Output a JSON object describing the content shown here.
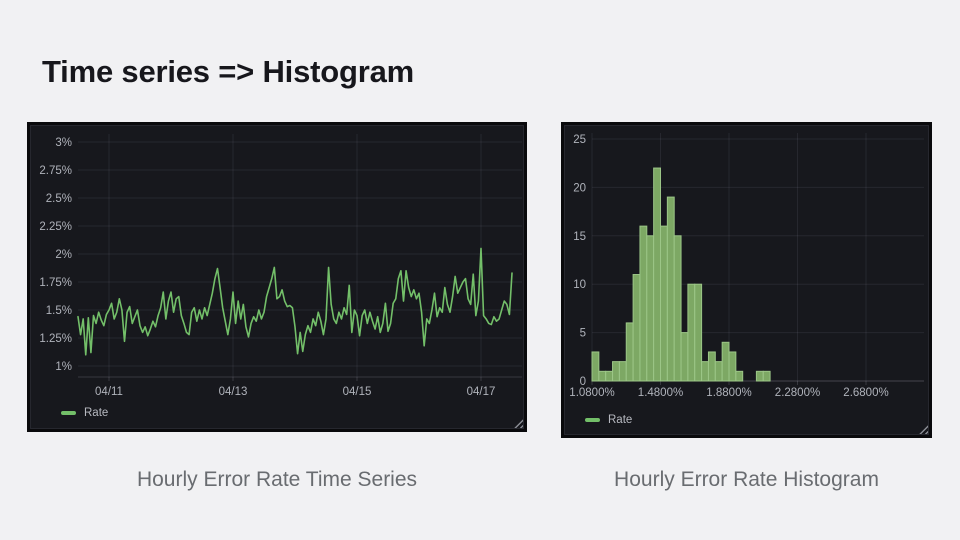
{
  "slide": {
    "title": "Time series => Histogram",
    "captions": {
      "left": "Hourly Error Rate Time Series",
      "right": "Hourly Error Rate Histogram"
    }
  },
  "colors": {
    "slide_background": "#f1f1f3",
    "panel_background": "#17181d",
    "panel_frame": "#0a0a0c",
    "title_text": "#17171c",
    "caption_text": "#696c70",
    "axis_text": "#b0b3bb",
    "legend_text": "#b7b9c0",
    "grid_line": "rgba(204,204,220,0.09)",
    "axis_line": "rgba(204,204,220,0.18)",
    "series_green": "#73bf69",
    "bar_fill": "#7da864",
    "bar_stroke": "#9cc687"
  },
  "chart_data": [
    {
      "type": "line",
      "name": "Hourly Error Rate Time Series",
      "legend": {
        "label": "Rate"
      },
      "color": "#73bf69",
      "y_ticks": [
        "3%",
        "2.75%",
        "2.5%",
        "2.25%",
        "2%",
        "1.75%",
        "1.5%",
        "1.25%",
        "1%"
      ],
      "ylim": [
        1.0,
        3.0
      ],
      "x_unit": "hour",
      "x_ticks": [
        {
          "label": "04/11",
          "index": 12
        },
        {
          "label": "04/13",
          "index": 60
        },
        {
          "label": "04/15",
          "index": 108
        },
        {
          "label": "04/17",
          "index": 156
        }
      ],
      "grid": true,
      "legend_position": "bottom-left",
      "values": [
        1.44,
        1.28,
        1.42,
        1.1,
        1.43,
        1.12,
        1.45,
        1.38,
        1.48,
        1.41,
        1.36,
        1.46,
        1.5,
        1.56,
        1.42,
        1.48,
        1.6,
        1.5,
        1.22,
        1.48,
        1.53,
        1.38,
        1.44,
        1.5,
        1.36,
        1.3,
        1.35,
        1.27,
        1.33,
        1.4,
        1.35,
        1.45,
        1.52,
        1.66,
        1.42,
        1.58,
        1.66,
        1.48,
        1.6,
        1.62,
        1.45,
        1.38,
        1.3,
        1.28,
        1.48,
        1.52,
        1.4,
        1.5,
        1.42,
        1.52,
        1.45,
        1.55,
        1.65,
        1.78,
        1.87,
        1.7,
        1.52,
        1.4,
        1.28,
        1.42,
        1.66,
        1.38,
        1.58,
        1.42,
        1.55,
        1.35,
        1.26,
        1.38,
        1.44,
        1.4,
        1.5,
        1.42,
        1.48,
        1.62,
        1.7,
        1.78,
        1.88,
        1.6,
        1.62,
        1.68,
        1.58,
        1.53,
        1.54,
        1.52,
        1.35,
        1.11,
        1.3,
        1.13,
        1.28,
        1.36,
        1.3,
        1.42,
        1.36,
        1.48,
        1.4,
        1.28,
        1.42,
        1.88,
        1.55,
        1.42,
        1.38,
        1.48,
        1.42,
        1.52,
        1.46,
        1.72,
        1.3,
        1.5,
        1.45,
        1.27,
        1.45,
        1.5,
        1.38,
        1.48,
        1.4,
        1.33,
        1.44,
        1.3,
        1.38,
        1.56,
        1.31,
        1.38,
        1.56,
        1.6,
        1.78,
        1.85,
        1.58,
        1.85,
        1.7,
        1.62,
        1.68,
        1.6,
        1.65,
        1.48,
        1.18,
        1.42,
        1.38,
        1.5,
        1.65,
        1.44,
        1.52,
        1.48,
        1.7,
        1.55,
        1.48,
        1.62,
        1.8,
        1.65,
        1.7,
        1.75,
        1.78,
        1.6,
        1.55,
        1.82,
        1.45,
        1.58,
        2.05,
        1.45,
        1.42,
        1.38,
        1.37,
        1.44,
        1.4,
        1.42,
        1.5,
        1.58,
        1.55,
        1.46,
        1.83
      ]
    },
    {
      "type": "bar",
      "name": "Hourly Error Rate Histogram",
      "legend": {
        "label": "Rate"
      },
      "color": "#73bf69",
      "y_ticks": [
        0,
        5,
        10,
        15,
        20,
        25
      ],
      "ylim": [
        0,
        25
      ],
      "x_ticks": [
        "1.0800%",
        "1.4800%",
        "1.8800%",
        "2.2800%",
        "2.6800%"
      ],
      "ticks_every_bins": 10,
      "bin_start_percent": 1.08,
      "bin_width_percent": 0.04,
      "grid": true,
      "legend_position": "bottom-left",
      "values": [
        3,
        1,
        1,
        2,
        2,
        6,
        11,
        16,
        15,
        22,
        16,
        19,
        15,
        5,
        10,
        10,
        2,
        3,
        2,
        4,
        3,
        1,
        0,
        0,
        1,
        1
      ]
    }
  ]
}
